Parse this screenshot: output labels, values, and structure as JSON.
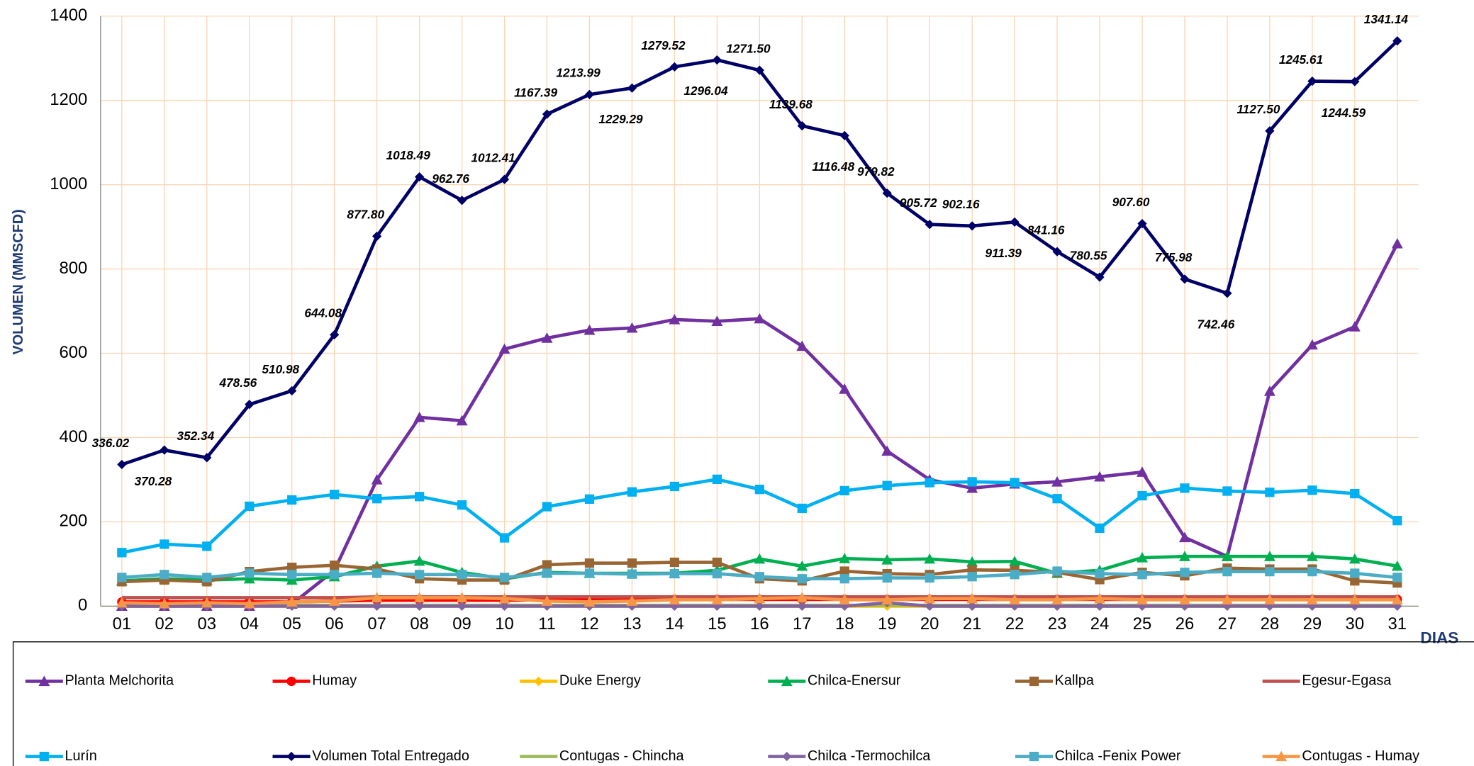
{
  "chart_data": {
    "type": "line",
    "y_label": "VOLUMEN (MMSCFD)",
    "x_label": "DIAS",
    "categories": [
      "01",
      "02",
      "03",
      "04",
      "05",
      "06",
      "07",
      "08",
      "09",
      "10",
      "11",
      "12",
      "13",
      "14",
      "15",
      "16",
      "17",
      "18",
      "19",
      "20",
      "21",
      "22",
      "23",
      "24",
      "25",
      "26",
      "27",
      "28",
      "29",
      "30",
      "31"
    ],
    "ylim": [
      0,
      1400
    ],
    "yticks": [
      0,
      200,
      400,
      600,
      800,
      1000,
      1200,
      1400
    ],
    "grid": true,
    "grid_color": "#fcd5b4",
    "series": [
      {
        "name": "Planta Melchorita",
        "color": "#7030a0",
        "marker": "triangle",
        "values": [
          0,
          0,
          0,
          0,
          5,
          85,
          300,
          448,
          440,
          610,
          636,
          655,
          660,
          680,
          676,
          682,
          617,
          515,
          368,
          300,
          280,
          290,
          295,
          307,
          318,
          163,
          118,
          510,
          620,
          663,
          860
        ]
      },
      {
        "name": "Humay",
        "color": "#ff0000",
        "marker": "circle",
        "values": [
          10,
          10,
          10,
          10,
          10,
          12,
          14,
          14,
          14,
          14,
          15,
          15,
          15,
          16,
          16,
          16,
          16,
          16,
          16,
          16,
          16,
          16,
          16,
          16,
          16,
          16,
          16,
          16,
          16,
          16,
          16
        ]
      },
      {
        "name": "Duke Energy",
        "color": "#ffc000",
        "marker": "diamond",
        "values": [
          0,
          0,
          0,
          0,
          0,
          0,
          0,
          0,
          0,
          0,
          0,
          0,
          0,
          0,
          0,
          0,
          0,
          0,
          0,
          0,
          0,
          0,
          0,
          0,
          0,
          0,
          0,
          0,
          0,
          0,
          0
        ]
      },
      {
        "name": "Chilca-Enersur",
        "color": "#00b050",
        "marker": "triangle",
        "values": [
          60,
          65,
          62,
          65,
          62,
          70,
          95,
          107,
          80,
          65,
          80,
          78,
          78,
          78,
          85,
          112,
          95,
          113,
          110,
          112,
          105,
          106,
          78,
          85,
          115,
          118,
          118,
          118,
          118,
          112,
          95
        ]
      },
      {
        "name": "Kallpa",
        "color": "#996633",
        "marker": "square",
        "values": [
          58,
          62,
          58,
          82,
          92,
          97,
          88,
          65,
          62,
          62,
          98,
          102,
          102,
          104,
          104,
          65,
          60,
          83,
          77,
          75,
          86,
          85,
          80,
          63,
          80,
          72,
          90,
          88,
          88,
          60,
          55
        ]
      },
      {
        "name": "Egesur-Egasa",
        "color": "#c0504d",
        "marker": "none",
        "values": [
          20,
          20,
          20,
          20,
          20,
          20,
          22,
          22,
          22,
          22,
          22,
          22,
          22,
          22,
          22,
          22,
          22,
          22,
          22,
          22,
          22,
          22,
          22,
          22,
          22,
          22,
          22,
          22,
          22,
          22,
          22
        ]
      },
      {
        "name": "Lurín",
        "color": "#00b0f0",
        "marker": "square",
        "values": [
          127,
          147,
          142,
          237,
          252,
          265,
          255,
          260,
          240,
          162,
          236,
          254,
          271,
          284,
          301,
          277,
          232,
          274,
          286,
          293,
          295,
          293,
          255,
          185,
          262,
          280,
          273,
          270,
          275,
          267,
          203
        ]
      },
      {
        "name": "Volumen Total Entregado",
        "color": "#000066",
        "marker": "diamond",
        "values": [
          336.02,
          370.28,
          352.34,
          478.56,
          510.98,
          644.08,
          877.8,
          1018.49,
          962.76,
          1012.41,
          1167.39,
          1213.99,
          1229.29,
          1279.52,
          1296.04,
          1271.5,
          1139.68,
          1116.48,
          979.82,
          905.72,
          902.16,
          911.39,
          841.16,
          780.55,
          907.6,
          775.98,
          742.46,
          1127.5,
          1245.61,
          1244.59,
          1341.14
        ],
        "value_labels": [
          "336.02",
          "370.28",
          "352.34",
          "478.56",
          "510.98",
          "644.08",
          "877.80",
          "1018.49",
          "962.76",
          "1012.41",
          "1167.39",
          "1213.99",
          "1229.29",
          "1279.52",
          "1296.04",
          "1271.50",
          "1139.68",
          "1116.48",
          "979.82",
          "905.72",
          "902.16",
          "911.39",
          "841.16",
          "780.55",
          "907.60",
          "775.98",
          "742.46",
          "1127.50",
          "1245.61",
          "1244.59",
          "1341.14"
        ]
      },
      {
        "name": "Contugas - Chincha",
        "color": "#9bbb59",
        "marker": "none",
        "values": [
          2,
          2,
          2,
          2,
          2,
          2,
          2,
          2,
          2,
          2,
          2,
          2,
          2,
          2,
          2,
          2,
          2,
          2,
          2,
          2,
          2,
          2,
          2,
          2,
          2,
          2,
          2,
          2,
          2,
          2,
          2
        ]
      },
      {
        "name": "Chilca -Termochilca",
        "color": "#8064a2",
        "marker": "diamond",
        "values": [
          0,
          0,
          0,
          0,
          0,
          0,
          0,
          0,
          0,
          0,
          0,
          0,
          0,
          0,
          0,
          0,
          0,
          0,
          8,
          0,
          0,
          0,
          0,
          0,
          0,
          0,
          0,
          0,
          0,
          0,
          0
        ]
      },
      {
        "name": "Chilca -Fenix Power",
        "color": "#4bacc6",
        "marker": "square",
        "values": [
          68,
          75,
          68,
          78,
          75,
          75,
          78,
          75,
          75,
          68,
          78,
          78,
          76,
          77,
          77,
          70,
          65,
          65,
          67,
          67,
          70,
          75,
          83,
          77,
          75,
          80,
          82,
          82,
          82,
          78,
          68
        ]
      },
      {
        "name": "Contugas - Humay",
        "color": "#f79646",
        "marker": "triangle",
        "values": [
          8,
          6,
          8,
          6,
          10,
          12,
          20,
          20,
          20,
          18,
          12,
          10,
          12,
          15,
          15,
          18,
          20,
          15,
          15,
          18,
          18,
          15,
          15,
          18,
          15,
          15,
          15,
          15,
          15,
          15,
          15
        ]
      }
    ]
  }
}
